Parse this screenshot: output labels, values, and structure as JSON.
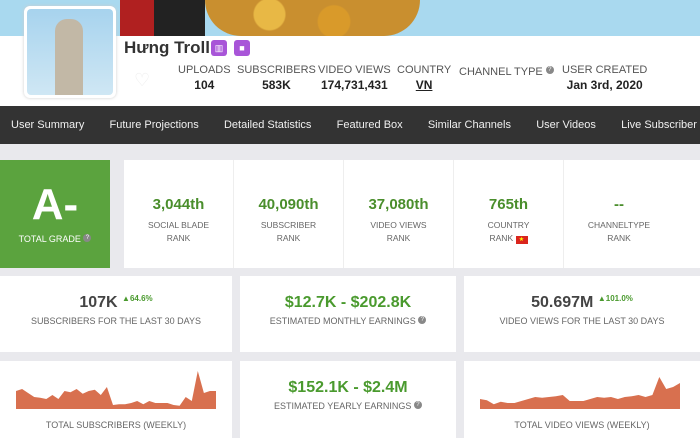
{
  "channel": {
    "name": "Hưng Troll",
    "stats": [
      {
        "label": "UPLOADS",
        "value": "104"
      },
      {
        "label": "SUBSCRIBERS",
        "value": "583K"
      },
      {
        "label": "VIDEO VIEWS",
        "value": "174,731,431"
      },
      {
        "label": "COUNTRY",
        "value": "VN"
      },
      {
        "label": "CHANNEL TYPE",
        "value": ""
      },
      {
        "label": "USER CREATED",
        "value": "Jan 3rd, 2020"
      }
    ]
  },
  "nav": [
    "User Summary",
    "Future Projections",
    "Detailed Statistics",
    "Featured Box",
    "Similar Channels",
    "User Videos",
    "Live Subscriber"
  ],
  "grade": {
    "value": "A-",
    "label": "TOTAL GRADE"
  },
  "ranks": [
    {
      "value": "3,044th",
      "label1": "SOCIAL BLADE",
      "label2": "RANK"
    },
    {
      "value": "40,090th",
      "label1": "SUBSCRIBER",
      "label2": "RANK"
    },
    {
      "value": "37,080th",
      "label1": "VIDEO VIEWS",
      "label2": "RANK"
    },
    {
      "value": "765th",
      "label1": "COUNTRY",
      "label2": "RANK"
    },
    {
      "value": "--",
      "label1": "CHANNELTYPE",
      "label2": "RANK"
    }
  ],
  "cards": {
    "subs30": {
      "value": "107K",
      "change": "64.6%",
      "label": "SUBSCRIBERS FOR THE LAST 30 DAYS"
    },
    "monthly": {
      "value": "$12.7K - $202.8K",
      "label": "ESTIMATED MONTHLY EARNINGS"
    },
    "views30": {
      "value": "50.697M",
      "change": "101.0%",
      "label": "VIDEO VIEWS FOR THE LAST 30 DAYS"
    },
    "subsWeekly": {
      "label": "TOTAL SUBSCRIBERS (WEEKLY)"
    },
    "yearly": {
      "value": "$152.1K - $2.4M",
      "label": "ESTIMATED YEARLY EARNINGS"
    },
    "viewsWeekly": {
      "label": "TOTAL VIDEO VIEWS (WEEKLY)"
    }
  },
  "colors": {
    "grade": "#5ba33e",
    "rank": "#4a8e2c",
    "sparkline": "#d8704f",
    "nav": "#333333",
    "badge": "#a855d8"
  }
}
